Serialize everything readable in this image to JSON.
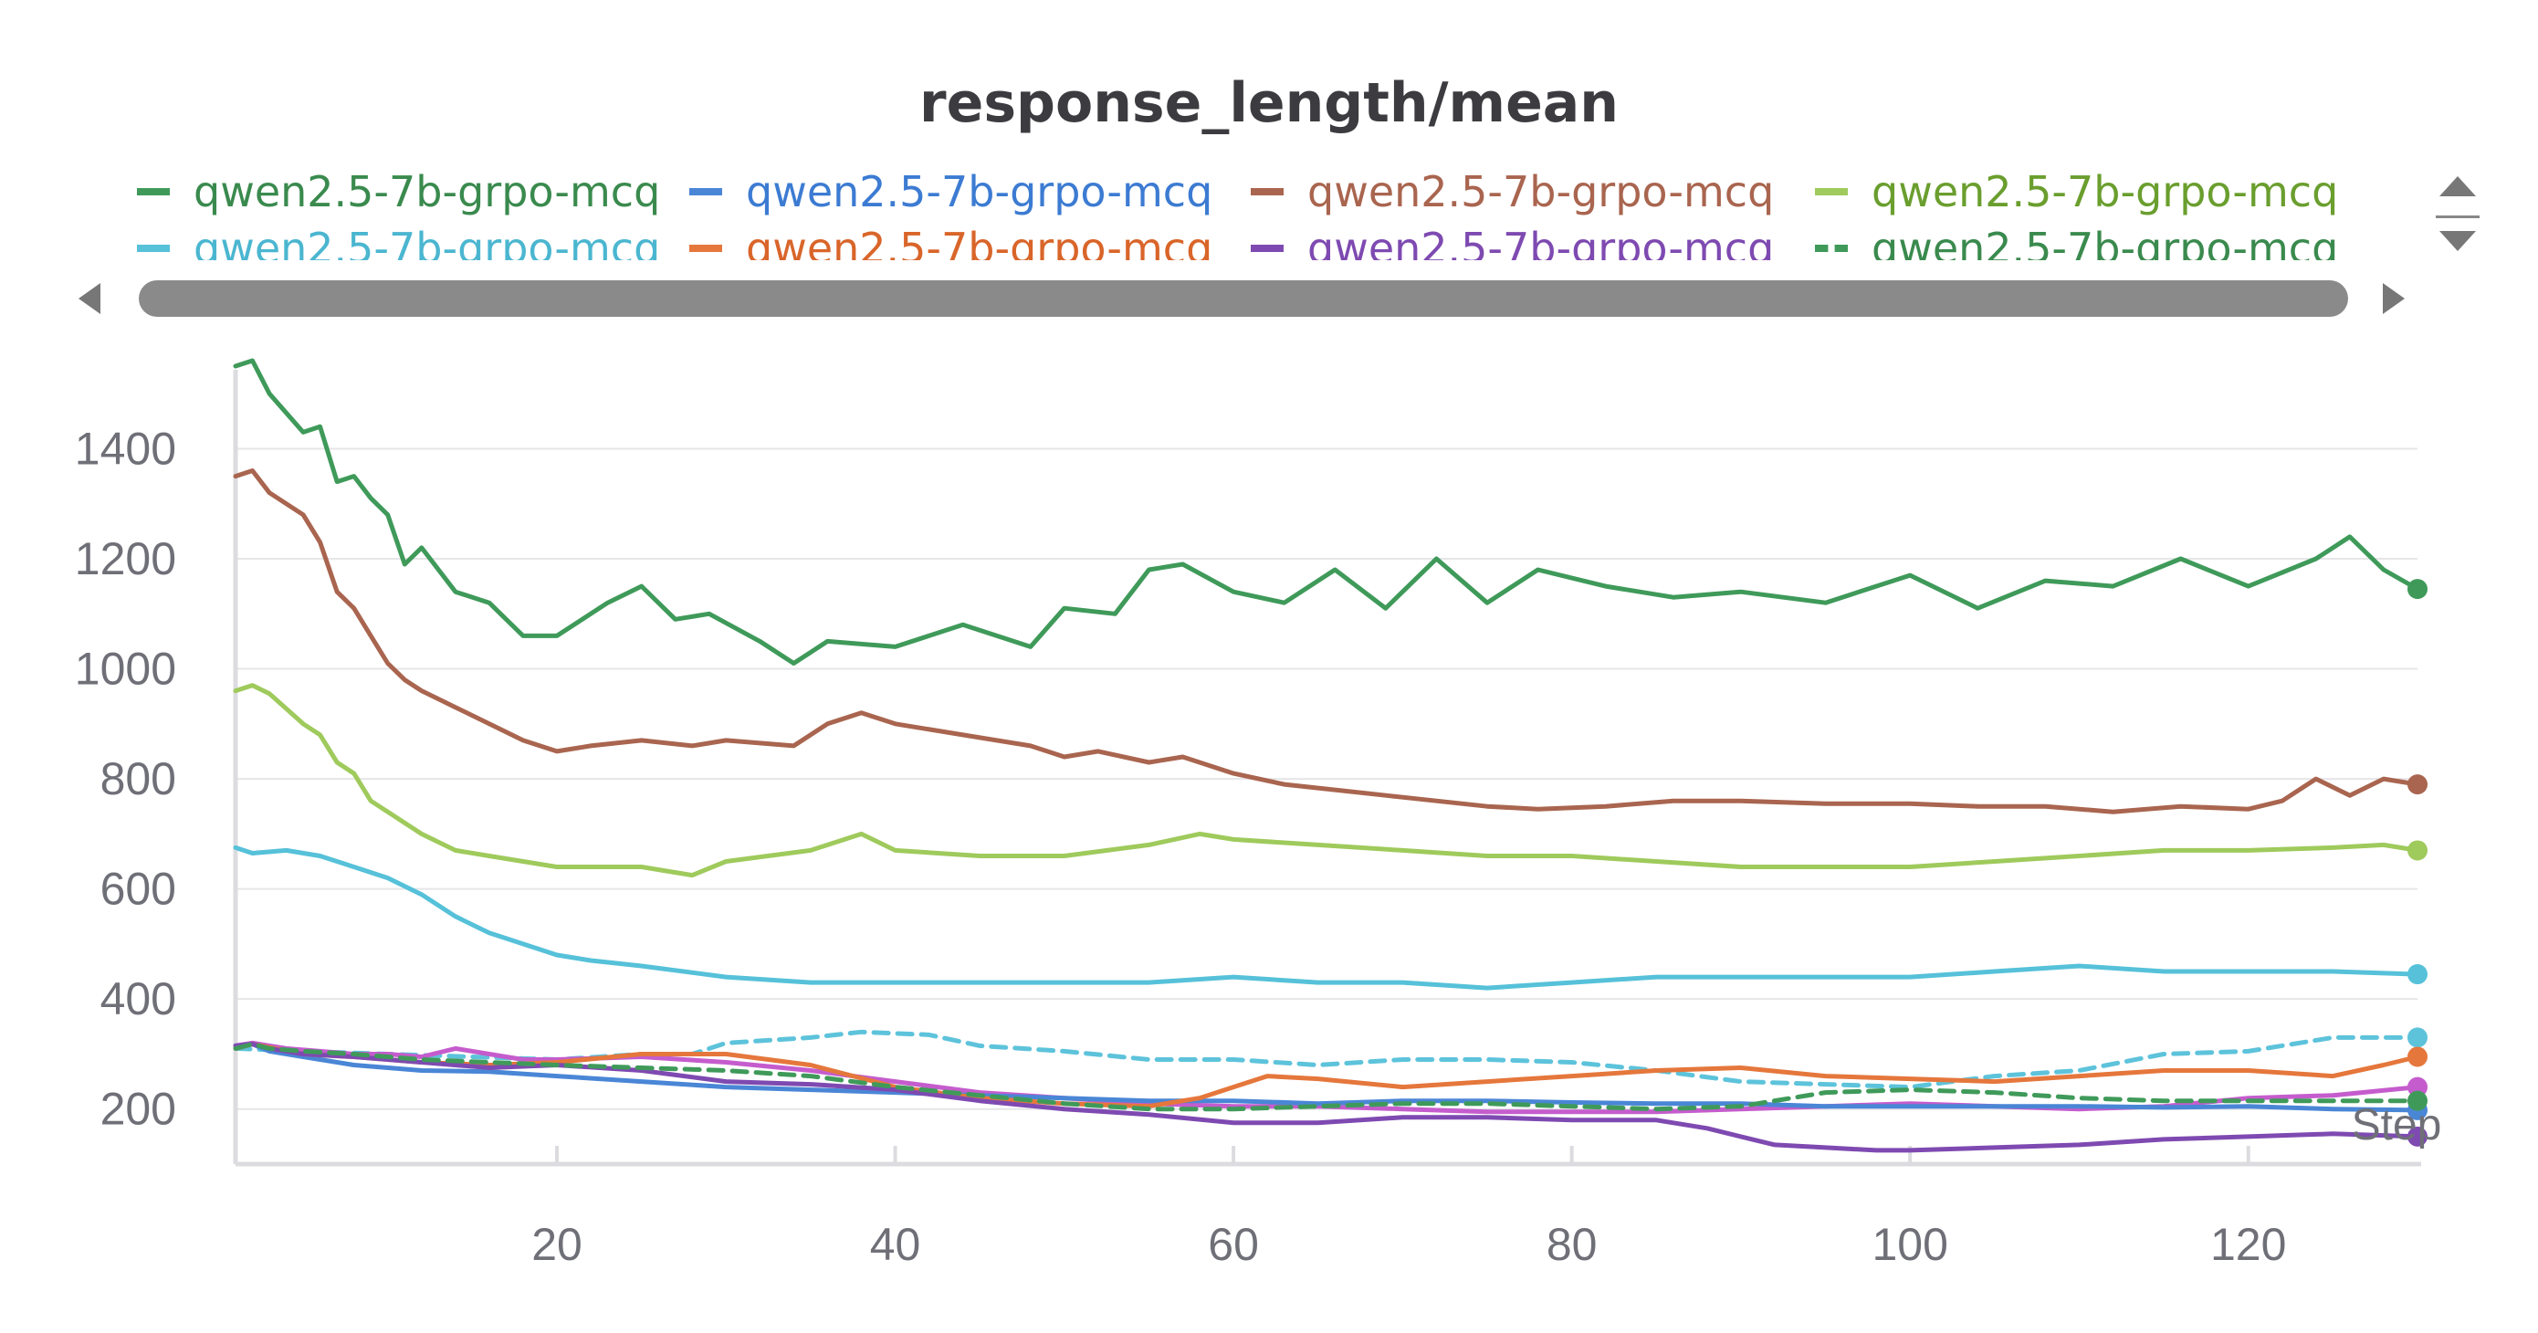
{
  "chart_data": {
    "type": "line",
    "title": "response_length/mean",
    "xlabel": "Step",
    "ylabel": "",
    "xlim": [
      1,
      130
    ],
    "ylim": [
      100,
      1560
    ],
    "x_ticks": [
      20,
      40,
      60,
      80,
      100,
      120
    ],
    "y_ticks": [
      200,
      400,
      600,
      800,
      1000,
      1200,
      1400
    ],
    "grid": "horizontal",
    "legend_position": "top",
    "series": [
      {
        "name": "qwen2.5-7b-grpo-mcq",
        "color": "#3f9a5a",
        "dash": "solid",
        "x": [
          1,
          2,
          3,
          5,
          6,
          7,
          8,
          9,
          10,
          11,
          12,
          14,
          16,
          17,
          18,
          20,
          23,
          25,
          27,
          29,
          32,
          34,
          36,
          40,
          44,
          48,
          50,
          53,
          55,
          57,
          60,
          63,
          66,
          69,
          72,
          75,
          78,
          82,
          86,
          90,
          95,
          100,
          104,
          108,
          112,
          116,
          120,
          124,
          126,
          128,
          130
        ],
        "y": [
          1550,
          1560,
          1500,
          1430,
          1440,
          1340,
          1350,
          1310,
          1280,
          1190,
          1220,
          1140,
          1120,
          1090,
          1060,
          1060,
          1120,
          1150,
          1090,
          1100,
          1050,
          1010,
          1050,
          1040,
          1080,
          1040,
          1110,
          1100,
          1180,
          1190,
          1140,
          1120,
          1180,
          1110,
          1200,
          1120,
          1180,
          1150,
          1130,
          1140,
          1120,
          1170,
          1110,
          1160,
          1150,
          1200,
          1150,
          1200,
          1240,
          1180,
          1145
        ]
      },
      {
        "name": "qwen2.5-7b-grpo-mcq",
        "color": "#4a86d6",
        "dash": "solid",
        "x": [
          1,
          2,
          3,
          5,
          8,
          12,
          16,
          20,
          25,
          30,
          35,
          40,
          45,
          50,
          55,
          60,
          65,
          70,
          75,
          80,
          85,
          90,
          95,
          100,
          105,
          110,
          115,
          120,
          125,
          130
        ],
        "y": [
          315,
          318,
          305,
          295,
          280,
          270,
          268,
          260,
          250,
          240,
          235,
          230,
          225,
          220,
          215,
          215,
          210,
          215,
          215,
          212,
          210,
          210,
          205,
          205,
          205,
          205,
          203,
          205,
          200,
          198
        ]
      },
      {
        "name": "qwen2.5-7b-grpo-mcq",
        "color": "#a9654f",
        "dash": "solid",
        "x": [
          1,
          2,
          3,
          5,
          6,
          7,
          8,
          9,
          10,
          11,
          12,
          14,
          16,
          18,
          20,
          22,
          25,
          28,
          30,
          34,
          36,
          38,
          40,
          44,
          48,
          50,
          52,
          55,
          57,
          60,
          63,
          66,
          69,
          72,
          75,
          78,
          82,
          86,
          90,
          95,
          100,
          104,
          108,
          112,
          116,
          120,
          122,
          124,
          126,
          128,
          130
        ],
        "y": [
          1350,
          1360,
          1320,
          1280,
          1230,
          1140,
          1110,
          1060,
          1010,
          980,
          960,
          930,
          900,
          870,
          850,
          860,
          870,
          860,
          870,
          860,
          900,
          920,
          900,
          880,
          860,
          840,
          850,
          830,
          840,
          810,
          790,
          780,
          770,
          760,
          750,
          745,
          750,
          760,
          760,
          755,
          755,
          750,
          750,
          740,
          750,
          745,
          760,
          800,
          770,
          800,
          790
        ]
      },
      {
        "name": "qwen2.5-7b-grpo-mcq",
        "color": "#9fca5c",
        "dash": "solid",
        "x": [
          1,
          2,
          3,
          5,
          6,
          7,
          8,
          9,
          10,
          12,
          14,
          16,
          18,
          20,
          25,
          28,
          30,
          35,
          38,
          40,
          45,
          50,
          55,
          58,
          60,
          65,
          70,
          75,
          80,
          85,
          90,
          95,
          100,
          105,
          110,
          115,
          120,
          125,
          128,
          130
        ],
        "y": [
          960,
          970,
          955,
          900,
          880,
          830,
          810,
          760,
          740,
          700,
          670,
          660,
          650,
          640,
          640,
          625,
          650,
          670,
          700,
          670,
          660,
          660,
          680,
          700,
          690,
          680,
          670,
          660,
          660,
          650,
          640,
          640,
          640,
          650,
          660,
          670,
          670,
          675,
          680,
          670
        ]
      },
      {
        "name": "qwen2.5-7b-grpo-mcq",
        "color": "#56c1d9",
        "dash": "solid",
        "x": [
          1,
          2,
          4,
          6,
          8,
          10,
          12,
          14,
          16,
          18,
          20,
          22,
          25,
          30,
          35,
          40,
          45,
          50,
          55,
          60,
          65,
          70,
          75,
          80,
          85,
          90,
          95,
          100,
          105,
          110,
          115,
          120,
          125,
          130
        ],
        "y": [
          675,
          665,
          670,
          660,
          640,
          620,
          590,
          550,
          520,
          500,
          480,
          470,
          460,
          440,
          430,
          430,
          430,
          430,
          430,
          440,
          430,
          430,
          420,
          430,
          440,
          440,
          440,
          440,
          450,
          460,
          450,
          450,
          450,
          445
        ]
      },
      {
        "name": "qwen2.5-7b-grpo-mcq",
        "color": "#e5773c",
        "dash": "solid",
        "x": [
          1,
          2,
          3,
          5,
          8,
          12,
          16,
          20,
          25,
          30,
          35,
          40,
          45,
          50,
          55,
          58,
          60,
          62,
          65,
          70,
          75,
          80,
          85,
          90,
          95,
          100,
          105,
          110,
          115,
          120,
          125,
          128,
          130
        ],
        "y": [
          310,
          318,
          312,
          300,
          295,
          285,
          280,
          285,
          300,
          300,
          280,
          240,
          220,
          210,
          205,
          220,
          240,
          260,
          255,
          240,
          250,
          260,
          270,
          275,
          260,
          255,
          250,
          260,
          270,
          270,
          260,
          280,
          295
        ]
      },
      {
        "name": "qwen2.5-7b-grpo-mcq",
        "color": "#7e4ab1",
        "dash": "solid",
        "x": [
          1,
          2,
          3,
          5,
          8,
          12,
          16,
          20,
          25,
          30,
          35,
          40,
          45,
          50,
          55,
          60,
          65,
          70,
          75,
          80,
          85,
          88,
          90,
          92,
          95,
          98,
          100,
          105,
          110,
          115,
          120,
          125,
          130
        ],
        "y": [
          315,
          318,
          310,
          300,
          295,
          285,
          275,
          280,
          270,
          250,
          245,
          235,
          215,
          200,
          190,
          175,
          175,
          185,
          185,
          180,
          180,
          165,
          150,
          135,
          130,
          125,
          125,
          130,
          135,
          145,
          150,
          155,
          150
        ]
      },
      {
        "name": "qwen2.5-7b-grpo-mcq",
        "color": "#3f9a5a",
        "dash": "dashed",
        "x": [
          1,
          2,
          3,
          5,
          8,
          12,
          16,
          20,
          25,
          30,
          35,
          40,
          45,
          50,
          55,
          60,
          65,
          70,
          75,
          80,
          85,
          90,
          95,
          100,
          105,
          110,
          115,
          120,
          125,
          130
        ],
        "y": [
          310,
          318,
          310,
          305,
          300,
          290,
          285,
          280,
          275,
          270,
          260,
          240,
          225,
          210,
          200,
          200,
          205,
          210,
          210,
          205,
          200,
          205,
          230,
          235,
          230,
          220,
          215,
          215,
          215,
          215
        ]
      }
    ],
    "unlabeled_series": [
      {
        "color": "#5dc3db",
        "dash": "dashed",
        "x": [
          1,
          5,
          10,
          15,
          20,
          25,
          28,
          30,
          35,
          38,
          42,
          45,
          50,
          55,
          60,
          65,
          70,
          75,
          80,
          85,
          90,
          95,
          100,
          105,
          110,
          115,
          120,
          125,
          130
        ],
        "y": [
          310,
          305,
          300,
          295,
          290,
          300,
          300,
          320,
          330,
          340,
          335,
          315,
          305,
          290,
          290,
          280,
          290,
          290,
          285,
          270,
          250,
          245,
          240,
          260,
          270,
          300,
          305,
          330,
          330
        ]
      },
      {
        "color": "#c55ccd",
        "dash": "solid",
        "x": [
          1,
          2,
          4,
          6,
          8,
          10,
          12,
          14,
          16,
          18,
          20,
          25,
          30,
          35,
          40,
          45,
          50,
          55,
          60,
          65,
          70,
          75,
          80,
          85,
          90,
          95,
          100,
          105,
          110,
          115,
          120,
          125,
          130
        ],
        "y": [
          315,
          320,
          310,
          305,
          300,
          300,
          295,
          310,
          300,
          290,
          290,
          295,
          285,
          270,
          250,
          230,
          220,
          210,
          205,
          205,
          200,
          195,
          195,
          195,
          200,
          205,
          210,
          205,
          200,
          205,
          220,
          225,
          240
        ]
      }
    ]
  }
}
